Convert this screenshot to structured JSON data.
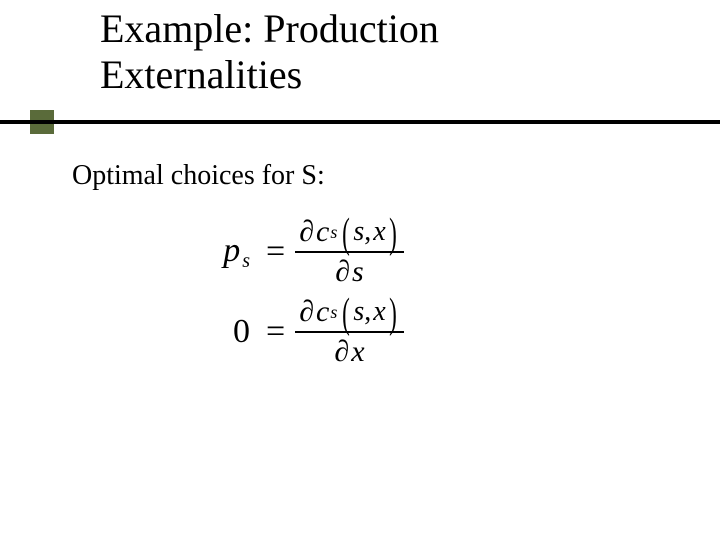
{
  "title_line1": "Example: Production",
  "title_line2": "Externalities",
  "body": "Optimal choices for S:",
  "accent_color": "#5a6b3a",
  "rule_color": "#000000",
  "eq1": {
    "lhs_var": "p",
    "lhs_sub": "s",
    "num_d": "∂",
    "num_c": "c",
    "num_csub": "s",
    "num_lp": "(",
    "num_arg1": "s",
    "num_comma": ",",
    "num_arg2": "x",
    "num_rp": ")",
    "den_d": "∂",
    "den_var": "s"
  },
  "eq2": {
    "lhs": "0",
    "num_d": "∂",
    "num_c": "c",
    "num_csub": "s",
    "num_lp": "(",
    "num_arg1": "s",
    "num_comma": ",",
    "num_arg2": "x",
    "num_rp": ")",
    "den_d": "∂",
    "den_var": "x"
  }
}
